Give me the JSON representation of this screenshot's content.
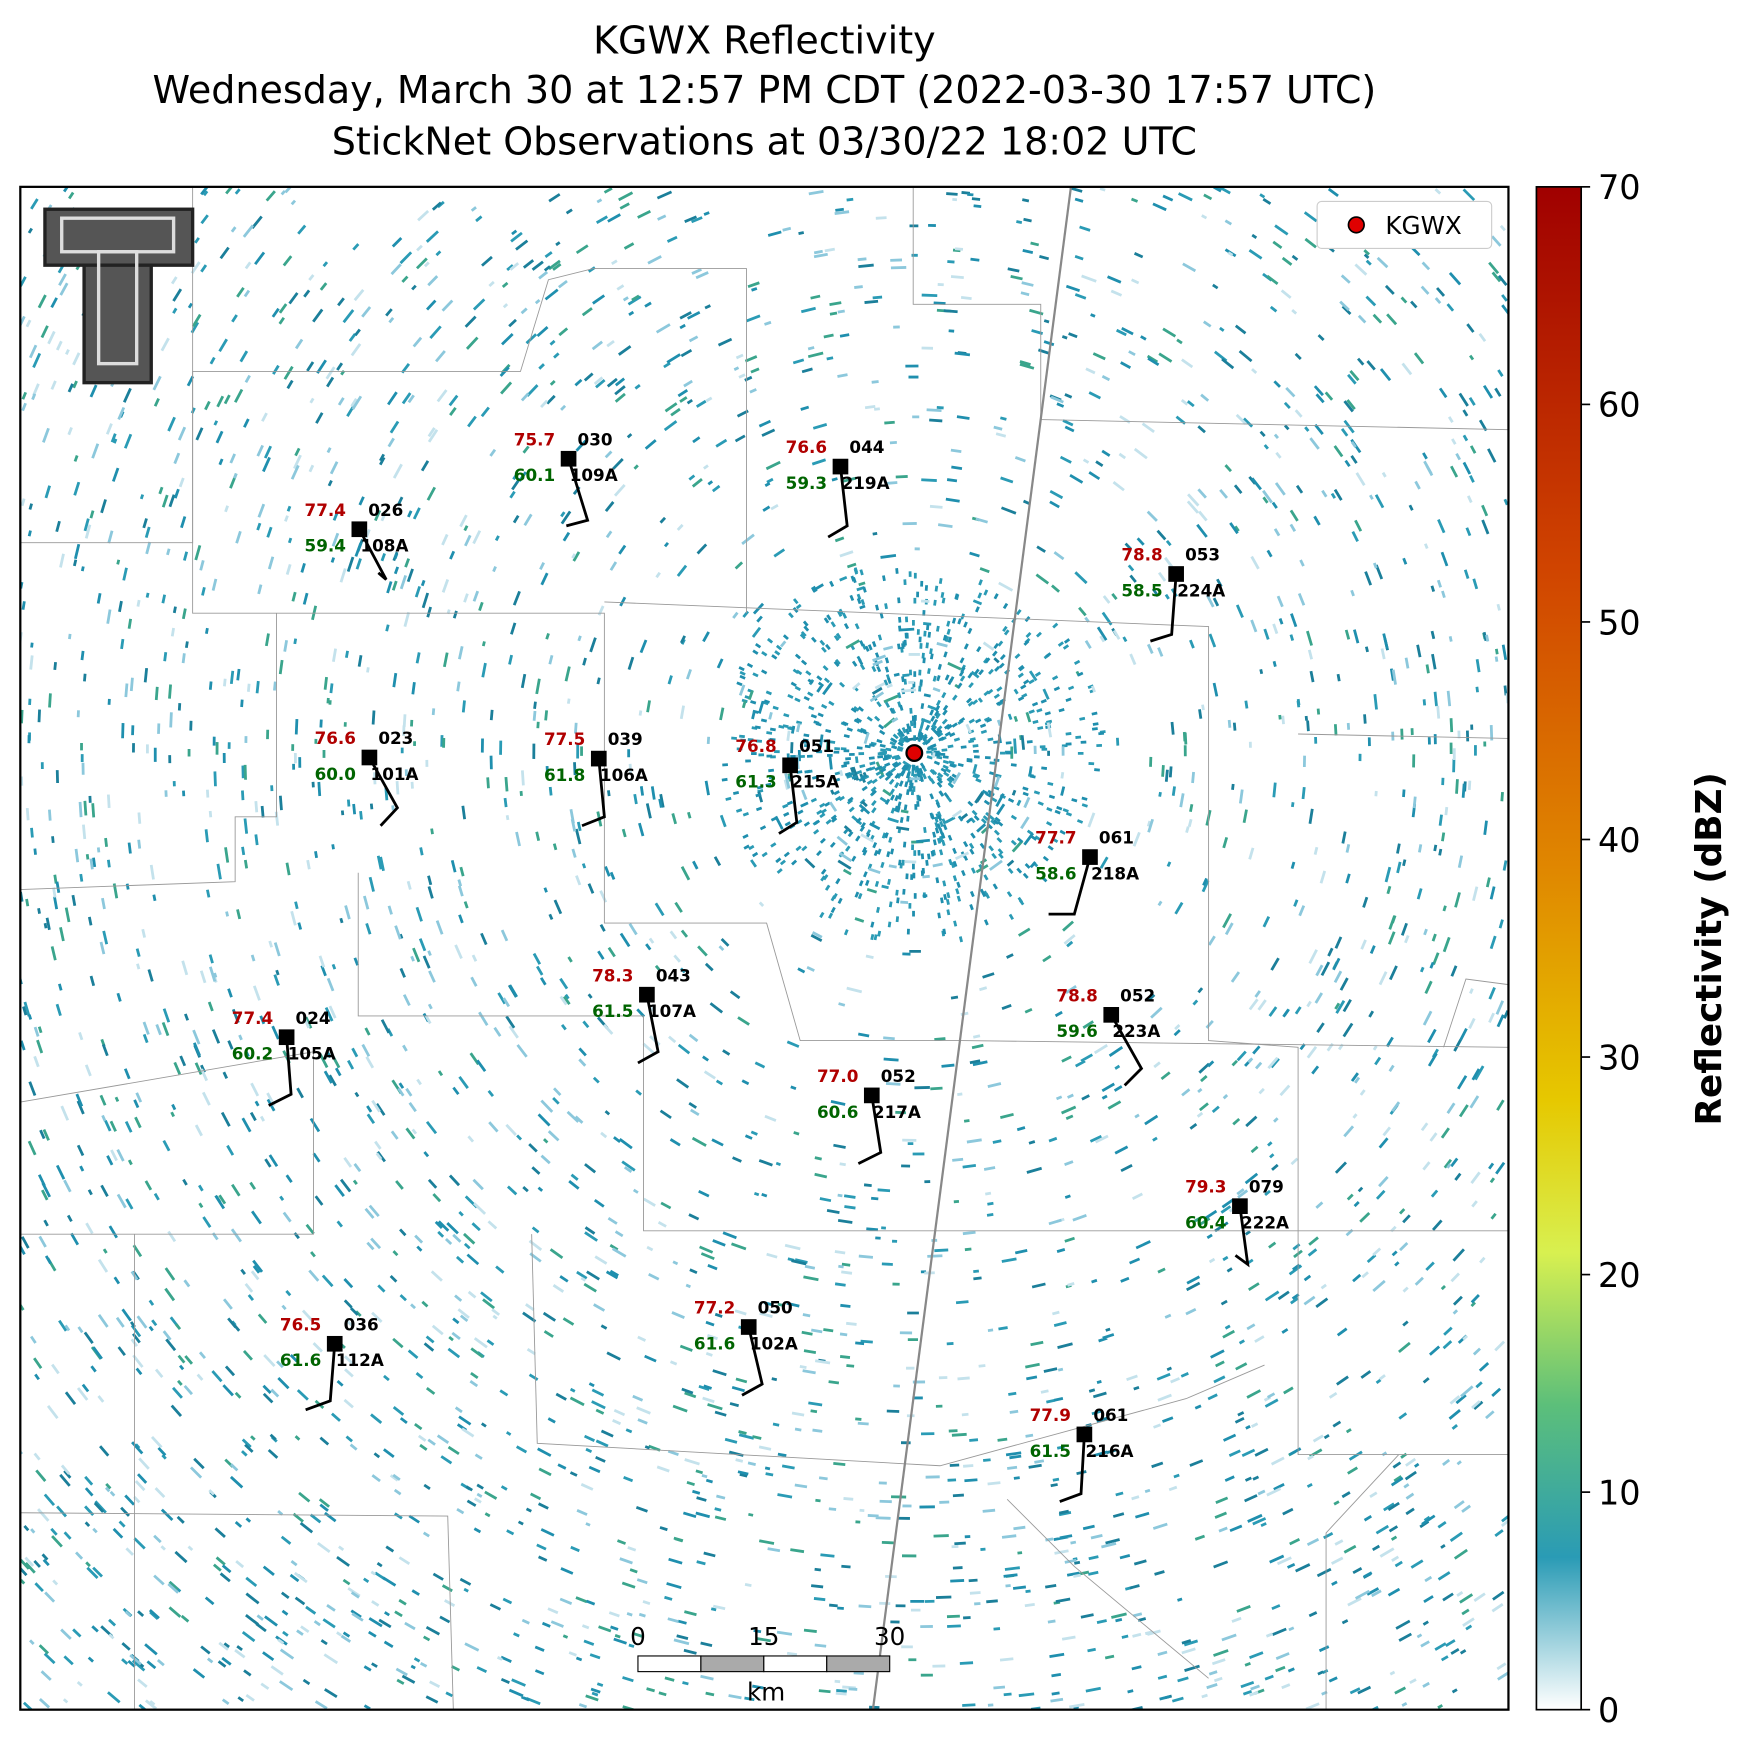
{
  "title": [
    "KGWX Reflectivity",
    "Wednesday, March 30 at 12:57 PM CDT (2022-03-30 17:57 UTC)",
    "StickNet Observations at 03/30/22 18:02 UTC"
  ],
  "legend": "KGWX",
  "colorbar": {
    "label": "Reflectivity (dBZ)",
    "ticks": [
      0,
      10,
      20,
      30,
      40,
      50,
      60,
      70
    ]
  },
  "scale_bar": {
    "ticks": [
      0,
      15,
      30
    ],
    "unit": "km"
  },
  "stations": [
    {
      "temperature": "77.4",
      "dewpoint": "59.4",
      "wind": "026",
      "id": "108A"
    },
    {
      "temperature": "75.7",
      "dewpoint": "60.1",
      "wind": "030",
      "id": "109A"
    },
    {
      "temperature": "76.6",
      "dewpoint": "59.3",
      "wind": "044",
      "id": "219A"
    },
    {
      "temperature": "78.8",
      "dewpoint": "58.5",
      "wind": "053",
      "id": "224A"
    },
    {
      "temperature": "76.6",
      "dewpoint": "60.0",
      "wind": "023",
      "id": "101A"
    },
    {
      "temperature": "77.5",
      "dewpoint": "61.8",
      "wind": "039",
      "id": "106A"
    },
    {
      "temperature": "76.8",
      "dewpoint": "61.3",
      "wind": "051",
      "id": "215A"
    },
    {
      "temperature": "77.7",
      "dewpoint": "58.6",
      "wind": "061",
      "id": "218A"
    },
    {
      "temperature": "78.3",
      "dewpoint": "61.5",
      "wind": "043",
      "id": "107A"
    },
    {
      "temperature": "77.4",
      "dewpoint": "60.2",
      "wind": "024",
      "id": "105A"
    },
    {
      "temperature": "78.8",
      "dewpoint": "59.6",
      "wind": "052",
      "id": "223A"
    },
    {
      "temperature": "77.0",
      "dewpoint": "60.6",
      "wind": "052",
      "id": "217A"
    },
    {
      "temperature": "79.3",
      "dewpoint": "60.4",
      "wind": "079",
      "id": "222A"
    },
    {
      "temperature": "76.5",
      "dewpoint": "61.6",
      "wind": "036",
      "id": "112A"
    },
    {
      "temperature": "77.2",
      "dewpoint": "61.6",
      "wind": "050",
      "id": "102A"
    },
    {
      "temperature": "77.9",
      "dewpoint": "61.5",
      "wind": "061",
      "id": "216A"
    }
  ]
}
